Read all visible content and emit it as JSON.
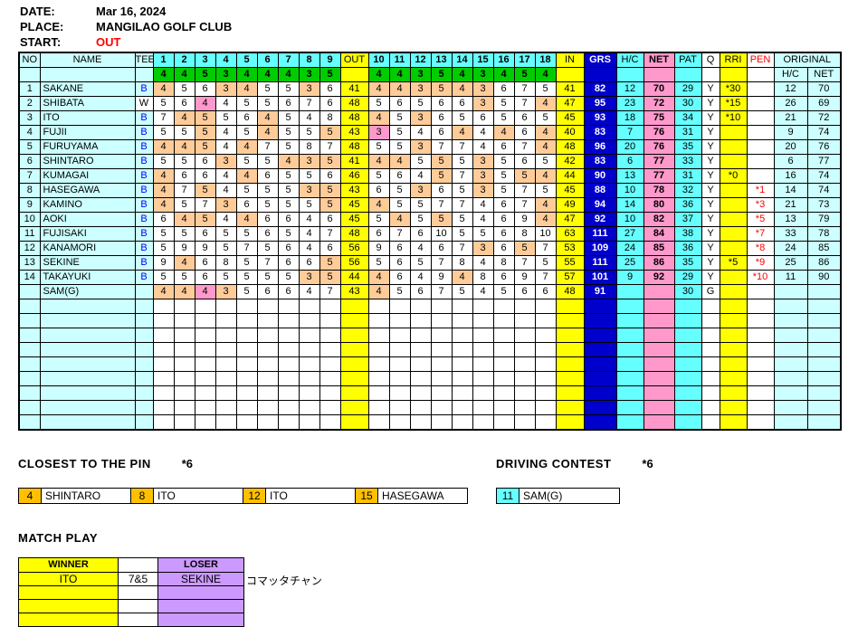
{
  "header": {
    "date_label": "DATE:",
    "date": "Mar 16, 2024",
    "place_label": "PLACE:",
    "place": "MANGILAO GOLF CLUB",
    "start_label": "START:",
    "start": "OUT"
  },
  "table": {
    "col_headers": {
      "no": "NO",
      "name": "NAME",
      "tee": "TEE",
      "out": "OUT",
      "in": "IN",
      "grs": "GRS",
      "hc": "H/C",
      "net": "NET",
      "pat": "PAT",
      "q": "Q",
      "rri": "RRI",
      "pen": "PEN",
      "original": "ORIGINAL",
      "orig_hc": "H/C",
      "orig_net": "NET"
    },
    "holes_out": [
      1,
      2,
      3,
      4,
      5,
      6,
      7,
      8,
      9
    ],
    "holes_in": [
      10,
      11,
      12,
      13,
      14,
      15,
      16,
      17,
      18
    ],
    "par_out": [
      4,
      4,
      5,
      3,
      4,
      4,
      4,
      3,
      5
    ],
    "par_in": [
      4,
      4,
      3,
      5,
      4,
      3,
      4,
      5,
      4
    ],
    "players": [
      {
        "no": "1",
        "name": "SAKANE",
        "tee": "B",
        "out": [
          4,
          5,
          6,
          3,
          4,
          5,
          5,
          3,
          6
        ],
        "out_total": 41,
        "in": [
          4,
          4,
          3,
          5,
          4,
          3,
          6,
          7,
          5
        ],
        "in_total": 41,
        "grs": 82,
        "hc": 12,
        "net": 70,
        "pat": 29,
        "q": "Y",
        "rri": "*30",
        "pen": "",
        "ohc": 12,
        "onet": 70
      },
      {
        "no": "2",
        "name": "SHIBATA",
        "tee": "W",
        "out": [
          5,
          6,
          4,
          4,
          5,
          5,
          6,
          7,
          6
        ],
        "out_total": 48,
        "in": [
          5,
          6,
          5,
          6,
          6,
          3,
          5,
          7,
          4
        ],
        "in_total": 47,
        "grs": 95,
        "hc": 23,
        "net": 72,
        "pat": 30,
        "q": "Y",
        "rri": "*15",
        "pen": "",
        "ohc": 26,
        "onet": 69
      },
      {
        "no": "3",
        "name": "ITO",
        "tee": "B",
        "out": [
          7,
          4,
          5,
          5,
          6,
          4,
          5,
          4,
          8
        ],
        "out_total": 48,
        "in": [
          4,
          5,
          3,
          6,
          5,
          6,
          5,
          6,
          5
        ],
        "in_total": 45,
        "grs": 93,
        "hc": 18,
        "net": 75,
        "pat": 34,
        "q": "Y",
        "rri": "*10",
        "pen": "",
        "ohc": 21,
        "onet": 72
      },
      {
        "no": "4",
        "name": "FUJII",
        "tee": "B",
        "out": [
          5,
          5,
          5,
          4,
          5,
          4,
          5,
          5,
          5
        ],
        "out_total": 43,
        "in": [
          3,
          5,
          4,
          6,
          4,
          4,
          4,
          6,
          4
        ],
        "in_total": 40,
        "grs": 83,
        "hc": 7,
        "net": 76,
        "pat": 31,
        "q": "Y",
        "rri": "",
        "pen": "",
        "ohc": 9,
        "onet": 74
      },
      {
        "no": "5",
        "name": "FURUYAMA",
        "tee": "B",
        "out": [
          4,
          4,
          5,
          4,
          4,
          7,
          5,
          8,
          7
        ],
        "out_total": 48,
        "in": [
          5,
          5,
          3,
          7,
          7,
          4,
          6,
          7,
          4
        ],
        "in_total": 48,
        "grs": 96,
        "hc": 20,
        "net": 76,
        "pat": 35,
        "q": "Y",
        "rri": "",
        "pen": "",
        "ohc": 20,
        "onet": 76
      },
      {
        "no": "6",
        "name": "SHINTARO",
        "tee": "B",
        "out": [
          5,
          5,
          6,
          3,
          5,
          5,
          4,
          3,
          5
        ],
        "out_total": 41,
        "in": [
          4,
          4,
          5,
          5,
          5,
          3,
          5,
          6,
          5
        ],
        "in_total": 42,
        "grs": 83,
        "hc": 6,
        "net": 77,
        "pat": 33,
        "q": "Y",
        "rri": "",
        "pen": "",
        "ohc": 6,
        "onet": 77
      },
      {
        "no": "7",
        "name": "KUMAGAI",
        "tee": "B",
        "out": [
          4,
          6,
          6,
          4,
          4,
          6,
          5,
          5,
          6
        ],
        "out_total": 46,
        "in": [
          5,
          6,
          4,
          5,
          7,
          3,
          5,
          5,
          4
        ],
        "in_total": 44,
        "grs": 90,
        "hc": 13,
        "net": 77,
        "pat": 31,
        "q": "Y",
        "rri": "*0",
        "pen": "",
        "ohc": 16,
        "onet": 74
      },
      {
        "no": "8",
        "name": "HASEGAWA",
        "tee": "B",
        "out": [
          4,
          7,
          5,
          4,
          5,
          5,
          5,
          3,
          5
        ],
        "out_total": 43,
        "in": [
          6,
          5,
          3,
          6,
          5,
          3,
          5,
          7,
          5
        ],
        "in_total": 45,
        "grs": 88,
        "hc": 10,
        "net": 78,
        "pat": 32,
        "q": "Y",
        "rri": "",
        "pen": "*1",
        "ohc": 14,
        "onet": 74
      },
      {
        "no": "9",
        "name": "KAMINO",
        "tee": "B",
        "out": [
          4,
          5,
          7,
          3,
          6,
          5,
          5,
          5,
          5
        ],
        "out_total": 45,
        "in": [
          4,
          5,
          5,
          7,
          7,
          4,
          6,
          7,
          4
        ],
        "in_total": 49,
        "grs": 94,
        "hc": 14,
        "net": 80,
        "pat": 36,
        "q": "Y",
        "rri": "",
        "pen": "*3",
        "ohc": 21,
        "onet": 73
      },
      {
        "no": "10",
        "name": "AOKI",
        "tee": "B",
        "out": [
          6,
          4,
          5,
          4,
          4,
          6,
          6,
          4,
          6
        ],
        "out_total": 45,
        "in": [
          5,
          4,
          5,
          5,
          5,
          4,
          6,
          9,
          4
        ],
        "in_total": 47,
        "grs": 92,
        "hc": 10,
        "net": 82,
        "pat": 37,
        "q": "Y",
        "rri": "",
        "pen": "*5",
        "ohc": 13,
        "onet": 79
      },
      {
        "no": "11",
        "name": "FUJISAKI",
        "tee": "B",
        "out": [
          5,
          5,
          6,
          5,
          5,
          6,
          5,
          4,
          7
        ],
        "out_total": 48,
        "in": [
          6,
          7,
          6,
          10,
          5,
          5,
          6,
          8,
          10
        ],
        "in_total": 63,
        "grs": 111,
        "hc": 27,
        "net": 84,
        "pat": 38,
        "q": "Y",
        "rri": "",
        "pen": "*7",
        "ohc": 33,
        "onet": 78
      },
      {
        "no": "12",
        "name": "KANAMORI",
        "tee": "B",
        "out": [
          5,
          9,
          9,
          5,
          7,
          5,
          6,
          4,
          6
        ],
        "out_total": 56,
        "in": [
          9,
          6,
          4,
          6,
          7,
          3,
          6,
          5,
          7
        ],
        "in_total": 53,
        "grs": 109,
        "hc": 24,
        "net": 85,
        "pat": 36,
        "q": "Y",
        "rri": "",
        "pen": "*8",
        "ohc": 24,
        "onet": 85
      },
      {
        "no": "13",
        "name": "SEKINE",
        "tee": "B",
        "out": [
          9,
          4,
          6,
          8,
          5,
          7,
          6,
          6,
          5
        ],
        "out_total": 56,
        "in": [
          5,
          6,
          5,
          7,
          8,
          4,
          8,
          7,
          5
        ],
        "in_total": 55,
        "grs": 111,
        "hc": 25,
        "net": 86,
        "pat": 35,
        "q": "Y",
        "rri": "*5",
        "pen": "*9",
        "ohc": 25,
        "onet": 86
      },
      {
        "no": "14",
        "name": "TAKAYUKI",
        "tee": "B",
        "out": [
          5,
          5,
          6,
          5,
          5,
          5,
          5,
          3,
          5
        ],
        "out_total": 44,
        "in": [
          4,
          6,
          4,
          9,
          4,
          8,
          6,
          9,
          7
        ],
        "in_total": 57,
        "grs": 101,
        "hc": 9,
        "net": 92,
        "pat": 29,
        "q": "Y",
        "rri": "",
        "pen": "*10",
        "ohc": 11,
        "onet": 90
      },
      {
        "no": "",
        "name": "SAM(G)",
        "tee": "",
        "out": [
          4,
          4,
          4,
          3,
          5,
          6,
          6,
          4,
          7
        ],
        "out_total": 43,
        "in": [
          4,
          5,
          6,
          7,
          5,
          4,
          5,
          6,
          6
        ],
        "in_total": 48,
        "grs": 91,
        "hc": "",
        "net": "",
        "pat": 30,
        "q": "G",
        "rri": "",
        "pen": "",
        "ohc": "",
        "onet": ""
      }
    ],
    "empty_rows": 9
  },
  "closest_to_pin": {
    "title": "CLOSEST TO THE PIN",
    "multiplier": "*6",
    "entries": [
      {
        "hole": "4",
        "name": "SHINTARO"
      },
      {
        "hole": "8",
        "name": "ITO"
      },
      {
        "hole": "12",
        "name": "ITO"
      },
      {
        "hole": "15",
        "name": "HASEGAWA"
      }
    ]
  },
  "driving_contest": {
    "title": "DRIVING CONTEST",
    "multiplier": "*6",
    "entries": [
      {
        "hole": "11",
        "name": "SAM(G)"
      }
    ]
  },
  "match_play": {
    "title": "MATCH PLAY",
    "winner_label": "WINNER",
    "loser_label": "LOSER",
    "rows": [
      {
        "winner": "ITO",
        "score": "7&5",
        "loser": "SEKINE",
        "note": "コマッタチャン"
      }
    ],
    "empty_rows": 3
  },
  "colors": {
    "hole_header_cyan": "#66FFFF",
    "pale_cyan": "#CCFFFF",
    "par_green": "#00CC00",
    "total_yellow": "#FFFF00",
    "gross_blue": "#0000CC",
    "net_pink": "#FF99CC",
    "par_score_tan": "#FFCC99",
    "birdie_pink": "#FF99CC",
    "pin_orange": "#FFC000",
    "loser_purple": "#CC99FF",
    "accent_red": "#FF0000",
    "tee_blue": "#0000FF"
  }
}
